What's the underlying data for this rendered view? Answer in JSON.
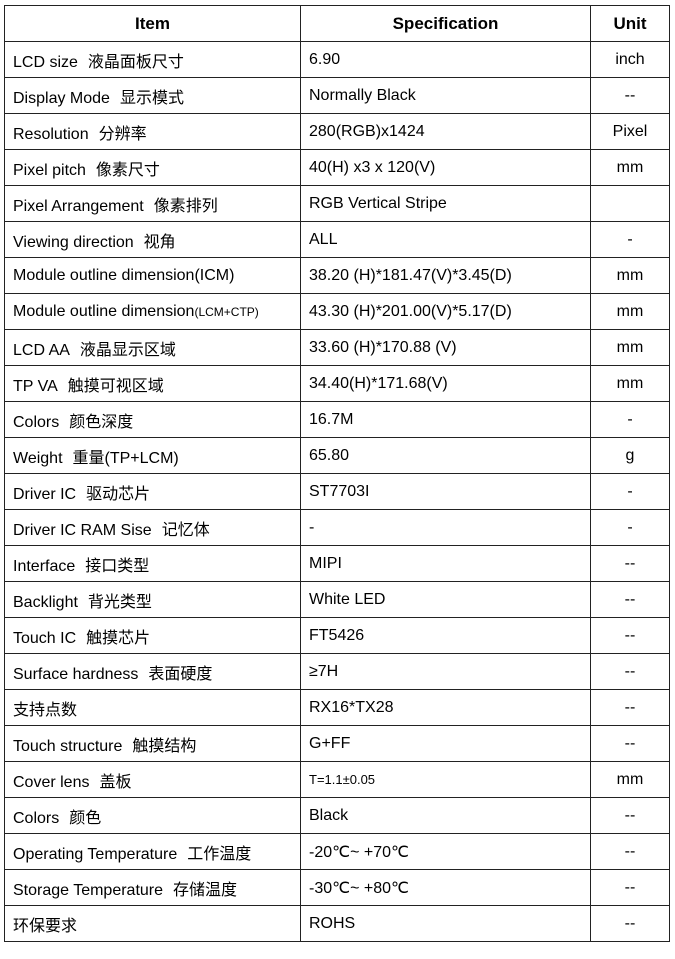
{
  "header": {
    "item": "Item",
    "specification": "Specification",
    "unit": "Unit"
  },
  "rows": [
    {
      "item": "LCD size",
      "item_cn": "液晶面板尺寸",
      "spec": "6.90",
      "unit": "inch"
    },
    {
      "item": "Display Mode",
      "item_cn": "显示模式",
      "spec": "Normally Black",
      "unit": "--"
    },
    {
      "item": "Resolution",
      "item_cn": "分辨率",
      "spec": "280(RGB)x1424",
      "unit": "Pixel"
    },
    {
      "item": "Pixel pitch",
      "item_cn": "像素尺寸",
      "spec": "40(H) x3 x 120(V)",
      "unit": "mm"
    },
    {
      "item": "Pixel Arrangement",
      "item_cn": "像素排列",
      "spec": "RGB Vertical Stripe",
      "unit": ""
    },
    {
      "item": "Viewing direction",
      "item_cn": "视角",
      "spec": "ALL",
      "unit": "-"
    },
    {
      "item": "Module outline dimension(ICM)",
      "item_cn": "",
      "spec": "38.20 (H)*181.47(V)*3.45(D)",
      "unit": "mm"
    },
    {
      "item": "Module outline dimension",
      "item_suffix": "(LCM+CTP)",
      "item_cn": "",
      "spec": "43.30 (H)*201.00(V)*5.17(D)",
      "unit": "mm"
    },
    {
      "item": "LCD AA",
      "item_cn": "液晶显示区域",
      "spec": "33.60 (H)*170.88 (V)",
      "unit": "mm"
    },
    {
      "item": "TP VA",
      "item_cn": "触摸可视区域",
      "spec": "34.40(H)*171.68(V)",
      "unit": "mm"
    },
    {
      "item": "Colors",
      "item_cn": "颜色深度",
      "spec": "16.7M",
      "unit": "-"
    },
    {
      "item": "Weight",
      "item_cn": "重量(TP+LCM)",
      "spec": "65.80",
      "unit": "g"
    },
    {
      "item": "Driver IC",
      "item_cn": "驱动芯片",
      "spec": "ST7703I",
      "unit": "-"
    },
    {
      "item": "Driver IC RAM Sise",
      "item_cn": "记忆体",
      "spec": "-",
      "unit": "-"
    },
    {
      "item": "Interface",
      "item_cn": "接口类型",
      "spec": "MIPI",
      "unit": "--"
    },
    {
      "item": "Backlight",
      "item_cn": "背光类型",
      "spec": "White LED",
      "unit": "--"
    },
    {
      "item": "Touch IC",
      "item_cn": "触摸芯片",
      "spec": "FT5426",
      "unit": "--"
    },
    {
      "item": "Surface hardness",
      "item_cn": "表面硬度",
      "spec": "≥7H",
      "unit": "--"
    },
    {
      "item": "",
      "item_cn": "支持点数",
      "spec": "RX16*TX28",
      "unit": "--"
    },
    {
      "item": "Touch structure",
      "item_cn": "触摸结构",
      "spec": "G+FF",
      "unit": "--"
    },
    {
      "item": "Cover lens",
      "item_cn": "盖板",
      "spec": "T=1.1±0.05",
      "unit": "mm"
    },
    {
      "item": "Colors",
      "item_cn": "颜色",
      "spec": "Black",
      "unit": "--"
    },
    {
      "item": "Operating Temperature",
      "item_cn": "工作温度",
      "spec": "-20℃~ +70℃",
      "unit": "--"
    },
    {
      "item": "Storage Temperature",
      "item_cn": "存储温度",
      "spec": "-30℃~ +80℃",
      "unit": "--"
    },
    {
      "item": "",
      "item_cn": "环保要求",
      "spec": "ROHS",
      "unit": "--"
    }
  ]
}
